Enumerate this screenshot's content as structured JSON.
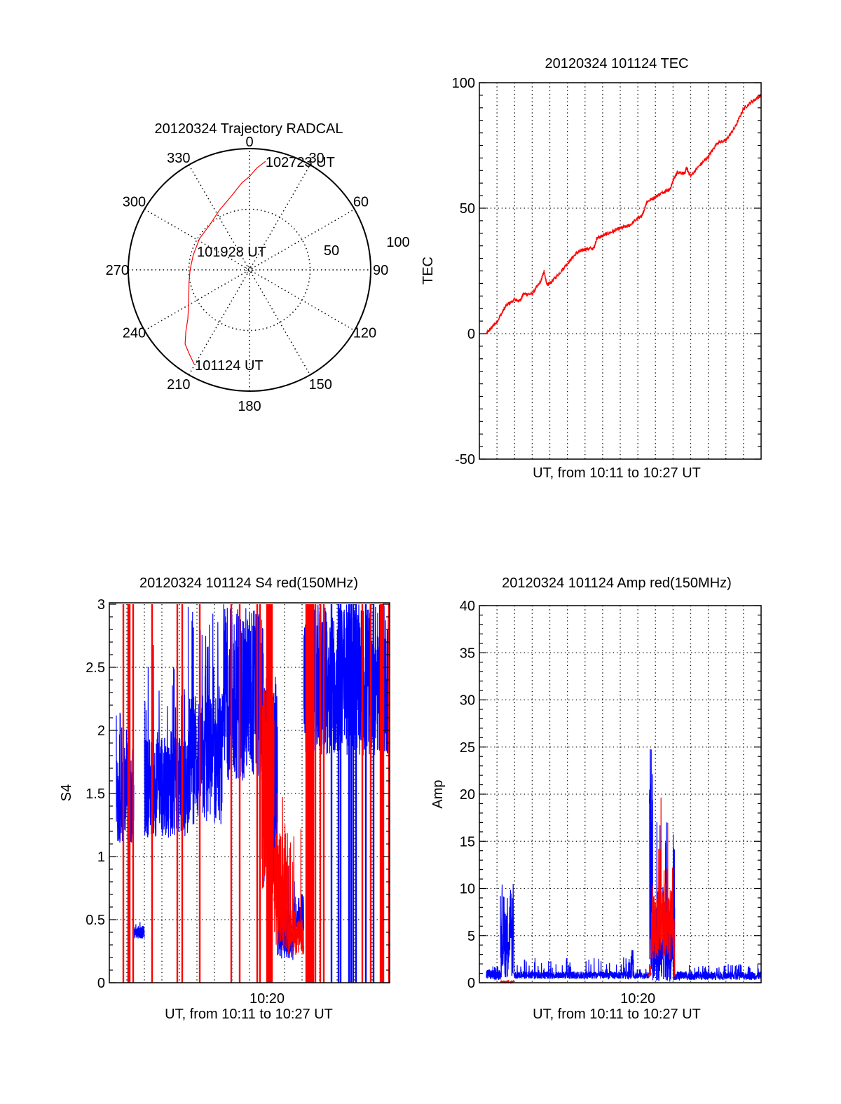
{
  "chart_data": [
    {
      "id": "trajectory",
      "type": "scatter",
      "subtype": "polar",
      "title": "20120324 Trajectory RADCAL",
      "angle_labels": [
        "0",
        "30",
        "60",
        "90",
        "120",
        "150",
        "180",
        "210",
        "240",
        "270",
        "300",
        "330"
      ],
      "radial_labels": [
        "50",
        "100"
      ],
      "radial_range": [
        0,
        100
      ],
      "grid": true,
      "series": [
        {
          "name": "trajectory",
          "color": "#ff0000",
          "points_az_r": [
            [
              210.3,
              90.3
            ],
            [
              216,
              85
            ],
            [
              221,
              81
            ],
            [
              226,
              73
            ],
            [
              231.5,
              65
            ],
            [
              240,
              58
            ],
            [
              248,
              54
            ],
            [
              258,
              51
            ],
            [
              270,
              49
            ],
            [
              285,
              48
            ],
            [
              302,
              48.6
            ],
            [
              319,
              49.6
            ],
            [
              333,
              55
            ],
            [
              346,
              62.5
            ],
            [
              355,
              72
            ],
            [
              0,
              77
            ],
            [
              4,
              84
            ],
            [
              8.4,
              90.5
            ]
          ]
        }
      ],
      "annotations": [
        {
          "text": "102723 UT",
          "at": "end"
        },
        {
          "text": "101928 UT",
          "at": "middle"
        },
        {
          "text": "101124 UT",
          "at": "start"
        }
      ]
    },
    {
      "id": "tec",
      "type": "line",
      "title": "20120324 101124 TEC",
      "xlabel": "UT, from 10:11 to 10:27 UT",
      "ylabel": "TEC",
      "x_unit": "minutes after 10:11 UT",
      "xlim": [
        0,
        16
      ],
      "ylim": [
        -50,
        100
      ],
      "yticks": [
        "-50",
        "0",
        "50",
        "100"
      ],
      "ytick_values": [
        -50,
        0,
        50,
        100
      ],
      "grid": true,
      "series": [
        {
          "name": "TEC",
          "color": "#ff0000",
          "x": [
            0.4,
            0.7,
            1.0,
            1.5,
            2.0,
            2.3,
            2.5,
            3.0,
            3.5,
            3.67,
            3.83,
            4.0,
            4.5,
            5.0,
            5.5,
            6.0,
            6.5,
            6.67,
            7.0,
            7.5,
            8.0,
            8.5,
            9.0,
            9.25,
            9.5,
            10.0,
            10.5,
            10.83,
            11.0,
            11.25,
            11.67,
            11.75,
            12.0,
            12.5,
            13.0,
            13.5,
            14.0,
            14.5,
            15.0,
            15.5,
            16.0
          ],
          "y": [
            0,
            2.5,
            4.7,
            11,
            13.6,
            13.0,
            15.8,
            15.8,
            21,
            25,
            19.5,
            20,
            23.7,
            28,
            32,
            33.7,
            34,
            38,
            39,
            40.5,
            42,
            43,
            46,
            47,
            52.5,
            54.5,
            56.7,
            57.5,
            61,
            64.5,
            63.8,
            66,
            62.8,
            67,
            70.5,
            76,
            77,
            82,
            89.6,
            92.6,
            95
          ]
        }
      ]
    },
    {
      "id": "s4",
      "type": "line",
      "title": "20120324 101124 S4 red(150MHz)",
      "xlabel": "UT, from 10:11 to 10:27 UT",
      "ylabel": "S4",
      "x_unit": "minutes after 10:11 UT",
      "xlim": [
        0,
        16
      ],
      "ylim": [
        0,
        3
      ],
      "xticks": [
        "10:20"
      ],
      "xtick_values": [
        9
      ],
      "yticks": [
        "0",
        "0.5",
        "1",
        "1.5",
        "2",
        "2.5",
        "3"
      ],
      "ytick_values": [
        0,
        0.5,
        1,
        1.5,
        2,
        2.5,
        3
      ],
      "grid": true,
      "series": [
        {
          "name": "blue channel",
          "color": "#0000ff",
          "segments": [
            {
              "x0": 0.4,
              "x1": 1.4,
              "lo": 1.1,
              "hi": 1.8,
              "spike": 2.2
            },
            {
              "x0": 1.4,
              "x1": 2.0,
              "lo": 0.35,
              "hi": 0.45,
              "spike": 0.5
            },
            {
              "x0": 2.0,
              "x1": 4.5,
              "lo": 1.15,
              "hi": 1.95,
              "spike": 2.7
            },
            {
              "x0": 4.5,
              "x1": 6.5,
              "lo": 1.25,
              "hi": 2.3,
              "spike": 3.0
            },
            {
              "x0": 6.5,
              "x1": 8.8,
              "lo": 1.6,
              "hi": 3.0,
              "spike": 3.0
            },
            {
              "x0": 8.8,
              "x1": 9.6,
              "lo": 0.7,
              "hi": 2.5,
              "spike": 3.0
            },
            {
              "x0": 9.6,
              "x1": 10.5,
              "lo": 0.18,
              "hi": 0.6,
              "spike": 0.95
            },
            {
              "x0": 10.5,
              "x1": 11.1,
              "lo": 0.4,
              "hi": 0.7,
              "spike": 0.9
            },
            {
              "x0": 11.1,
              "x1": 16.0,
              "lo": 1.8,
              "hi": 3.0,
              "spike": 3.0
            }
          ],
          "full_height_lines_x": [
            12.68,
            13.08,
            13.2,
            13.68,
            13.8,
            13.92,
            14.08,
            14.64,
            15.08
          ]
        },
        {
          "name": "red channel",
          "color": "#ff0000",
          "segments": [
            {
              "x0": 8.7,
              "x1": 9.4,
              "lo": 0.7,
              "hi": 2.5,
              "spike": 3.0
            },
            {
              "x0": 9.4,
              "x1": 10.2,
              "lo": 0.25,
              "hi": 1.2,
              "spike": 1.6
            },
            {
              "x0": 10.2,
              "x1": 11.1,
              "lo": 0.22,
              "hi": 0.5,
              "spike": 1.3
            }
          ],
          "full_height_lines_x": [
            0.8,
            1.08,
            1.16,
            1.36,
            2.44,
            3.88,
            4.16,
            5.16,
            6.96,
            7.44,
            8.44,
            8.6,
            9.0,
            9.08,
            9.16,
            9.24,
            9.28,
            11.24,
            11.32,
            11.4,
            11.48,
            11.56,
            11.64,
            11.76,
            12.04,
            12.24,
            14.44,
            14.92,
            15.48,
            15.56,
            15.64,
            15.96
          ]
        }
      ]
    },
    {
      "id": "amp",
      "type": "line",
      "title": "20120324 101124 Amp red(150MHz)",
      "xlabel": "UT, from 10:11 to 10:27 UT",
      "ylabel": "Amp",
      "x_unit": "minutes after 10:11 UT",
      "xlim": [
        0,
        16
      ],
      "ylim": [
        0,
        40
      ],
      "xticks": [
        "10:20"
      ],
      "xtick_values": [
        9
      ],
      "yticks": [
        "0",
        "5",
        "10",
        "15",
        "20",
        "25",
        "30",
        "35",
        "40"
      ],
      "ytick_values": [
        0,
        5,
        10,
        15,
        20,
        25,
        30,
        35,
        40
      ],
      "grid": true,
      "series": [
        {
          "name": "blue channel",
          "color": "#0000ff",
          "segments": [
            {
              "x0": 0.4,
              "x1": 1.2,
              "lo": 0.3,
              "hi": 1.4,
              "spike": 1.8
            },
            {
              "x0": 1.2,
              "x1": 1.95,
              "lo": 0.5,
              "hi": 9.5,
              "spike": 10.8
            },
            {
              "x0": 1.95,
              "x1": 8.6,
              "lo": 0.4,
              "hi": 1.2,
              "spike": 2.7
            },
            {
              "x0": 8.6,
              "x1": 8.75,
              "lo": 0.5,
              "hi": 3.5,
              "spike": 4.3
            },
            {
              "x0": 8.75,
              "x1": 9.65,
              "lo": 0.4,
              "hi": 1.1,
              "spike": 1.6
            },
            {
              "x0": 9.65,
              "x1": 9.85,
              "lo": 0.2,
              "hi": 25,
              "spike": 34.3
            },
            {
              "x0": 9.85,
              "x1": 11.1,
              "lo": 0.1,
              "hi": 8,
              "spike": 17.4
            },
            {
              "x0": 11.1,
              "x1": 16.0,
              "lo": 0.3,
              "hi": 1.2,
              "spike": 2.0
            }
          ]
        },
        {
          "name": "red channel",
          "color": "#ff0000",
          "segments": [
            {
              "x0": 1.2,
              "x1": 1.95,
              "lo": 0.0,
              "hi": 0.2,
              "spike": 0.3
            },
            {
              "x0": 9.6,
              "x1": 9.75,
              "lo": 0.5,
              "hi": 2.0,
              "spike": 3
            },
            {
              "x0": 9.75,
              "x1": 11.0,
              "lo": 2.5,
              "hi": 10,
              "spike": 20.1
            },
            {
              "x0": 11.0,
              "x1": 11.1,
              "lo": 0.5,
              "hi": 7,
              "spike": 17.4
            }
          ]
        }
      ]
    }
  ]
}
